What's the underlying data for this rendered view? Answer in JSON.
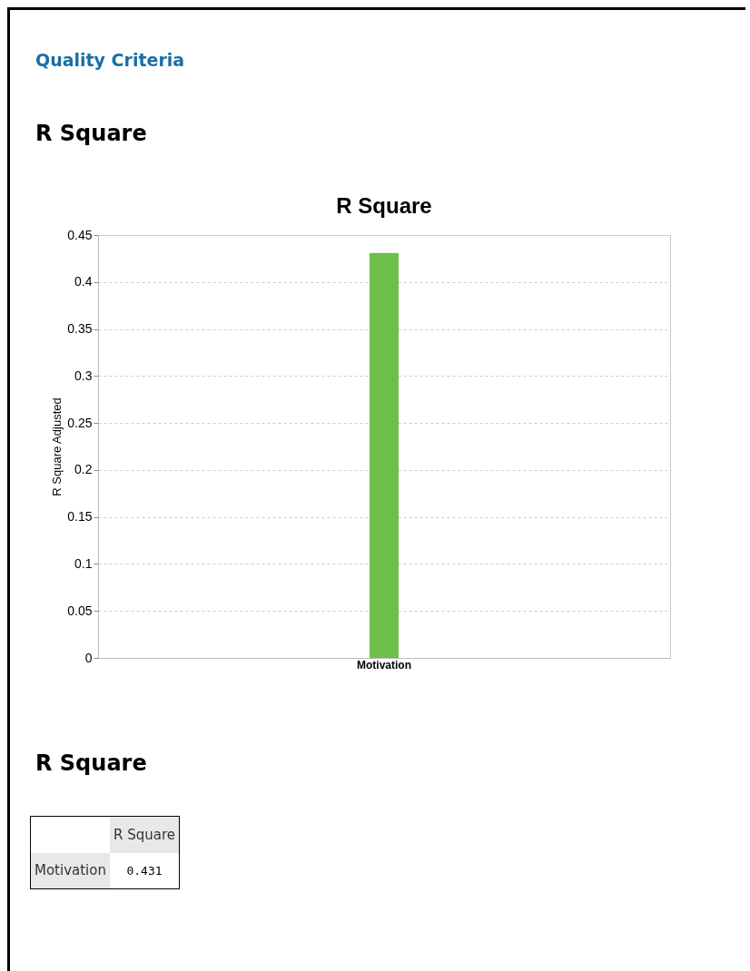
{
  "chart_data": {
    "type": "bar",
    "title": "R Square",
    "ylabel": "R Square Adjusted",
    "categories": [
      "Motivation"
    ],
    "values": [
      0.431
    ],
    "color": "#6cc04a",
    "ylim": [
      0,
      0.45
    ],
    "yticks": [
      0,
      0.05,
      0.1,
      0.15,
      0.2,
      0.25,
      0.3,
      0.35,
      0.4,
      0.45
    ],
    "grid": "y",
    "annotations": [
      "Quality Criteria",
      "R Square",
      "R Square",
      "R Square",
      "0.431"
    ]
  }
}
